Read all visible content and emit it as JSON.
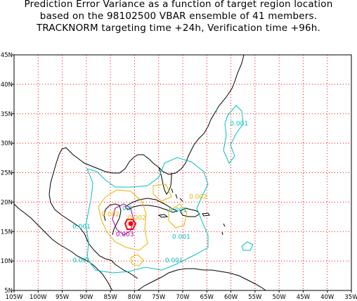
{
  "title": {
    "line1": "Prediction Error Variance as a function of target region location",
    "line2": "based on the 98102500 VBAR ensemble of 41 members.",
    "line3": "TRACKNORM targeting time +24h, Verification time +96h."
  },
  "axes": {
    "lon_ticks": [
      "105W",
      "100W",
      "95W",
      "90W",
      "85W",
      "80W",
      "75W",
      "70W",
      "65W",
      "60W",
      "55W",
      "50W",
      "45W",
      "40W",
      "35W"
    ],
    "lat_ticks": [
      "5N",
      "10N",
      "15N",
      "20N",
      "25N",
      "30N",
      "35N",
      "40N",
      "45N"
    ],
    "lon_range": [
      -105,
      -35
    ],
    "lat_range": [
      5,
      45
    ]
  },
  "colors": {
    "grid": "#ff0000",
    "coast": "#000000",
    "level_0001": "#00c0c0",
    "level_0002": "#e6b400",
    "level_0003": "#a000a0",
    "max": "#ff0000"
  },
  "contour_labels": [
    {
      "text": "0.001",
      "color": "#00c0c0",
      "lon": -58.3,
      "lat": 33.0
    },
    {
      "text": "0.001",
      "color": "#00c0c0",
      "lon": -71.0,
      "lat": 18.3
    },
    {
      "text": "0.001",
      "color": "#00c0c0",
      "lon": -91.0,
      "lat": 15.5
    },
    {
      "text": "0.001",
      "color": "#00c0c0",
      "lon": -70.3,
      "lat": 13.8
    },
    {
      "text": "0.001",
      "color": "#00c0c0",
      "lon": -91.0,
      "lat": 9.8
    },
    {
      "text": "0.001",
      "color": "#00c0c0",
      "lon": -71.8,
      "lat": 9.8
    },
    {
      "text": "0.002",
      "color": "#e6b400",
      "lon": -85.0,
      "lat": 17.6
    },
    {
      "text": "0.002",
      "color": "#e6b400",
      "lon": -79.5,
      "lat": 17.0
    },
    {
      "text": "0.002",
      "color": "#e6b400",
      "lon": -66.8,
      "lat": 20.6
    },
    {
      "text": "0.003",
      "color": "#a000a0",
      "lon": -82.0,
      "lat": 14.2
    },
    {
      "text": "0.0",
      "color": "#00c0c0",
      "lon": -81.5,
      "lat": 18.6
    }
  ],
  "chart_data": {
    "type": "map-contour",
    "field": "Prediction Error Variance",
    "levels": [
      0.001,
      0.002,
      0.003
    ],
    "maximum": {
      "lon": -81,
      "lat": 16.5
    }
  }
}
